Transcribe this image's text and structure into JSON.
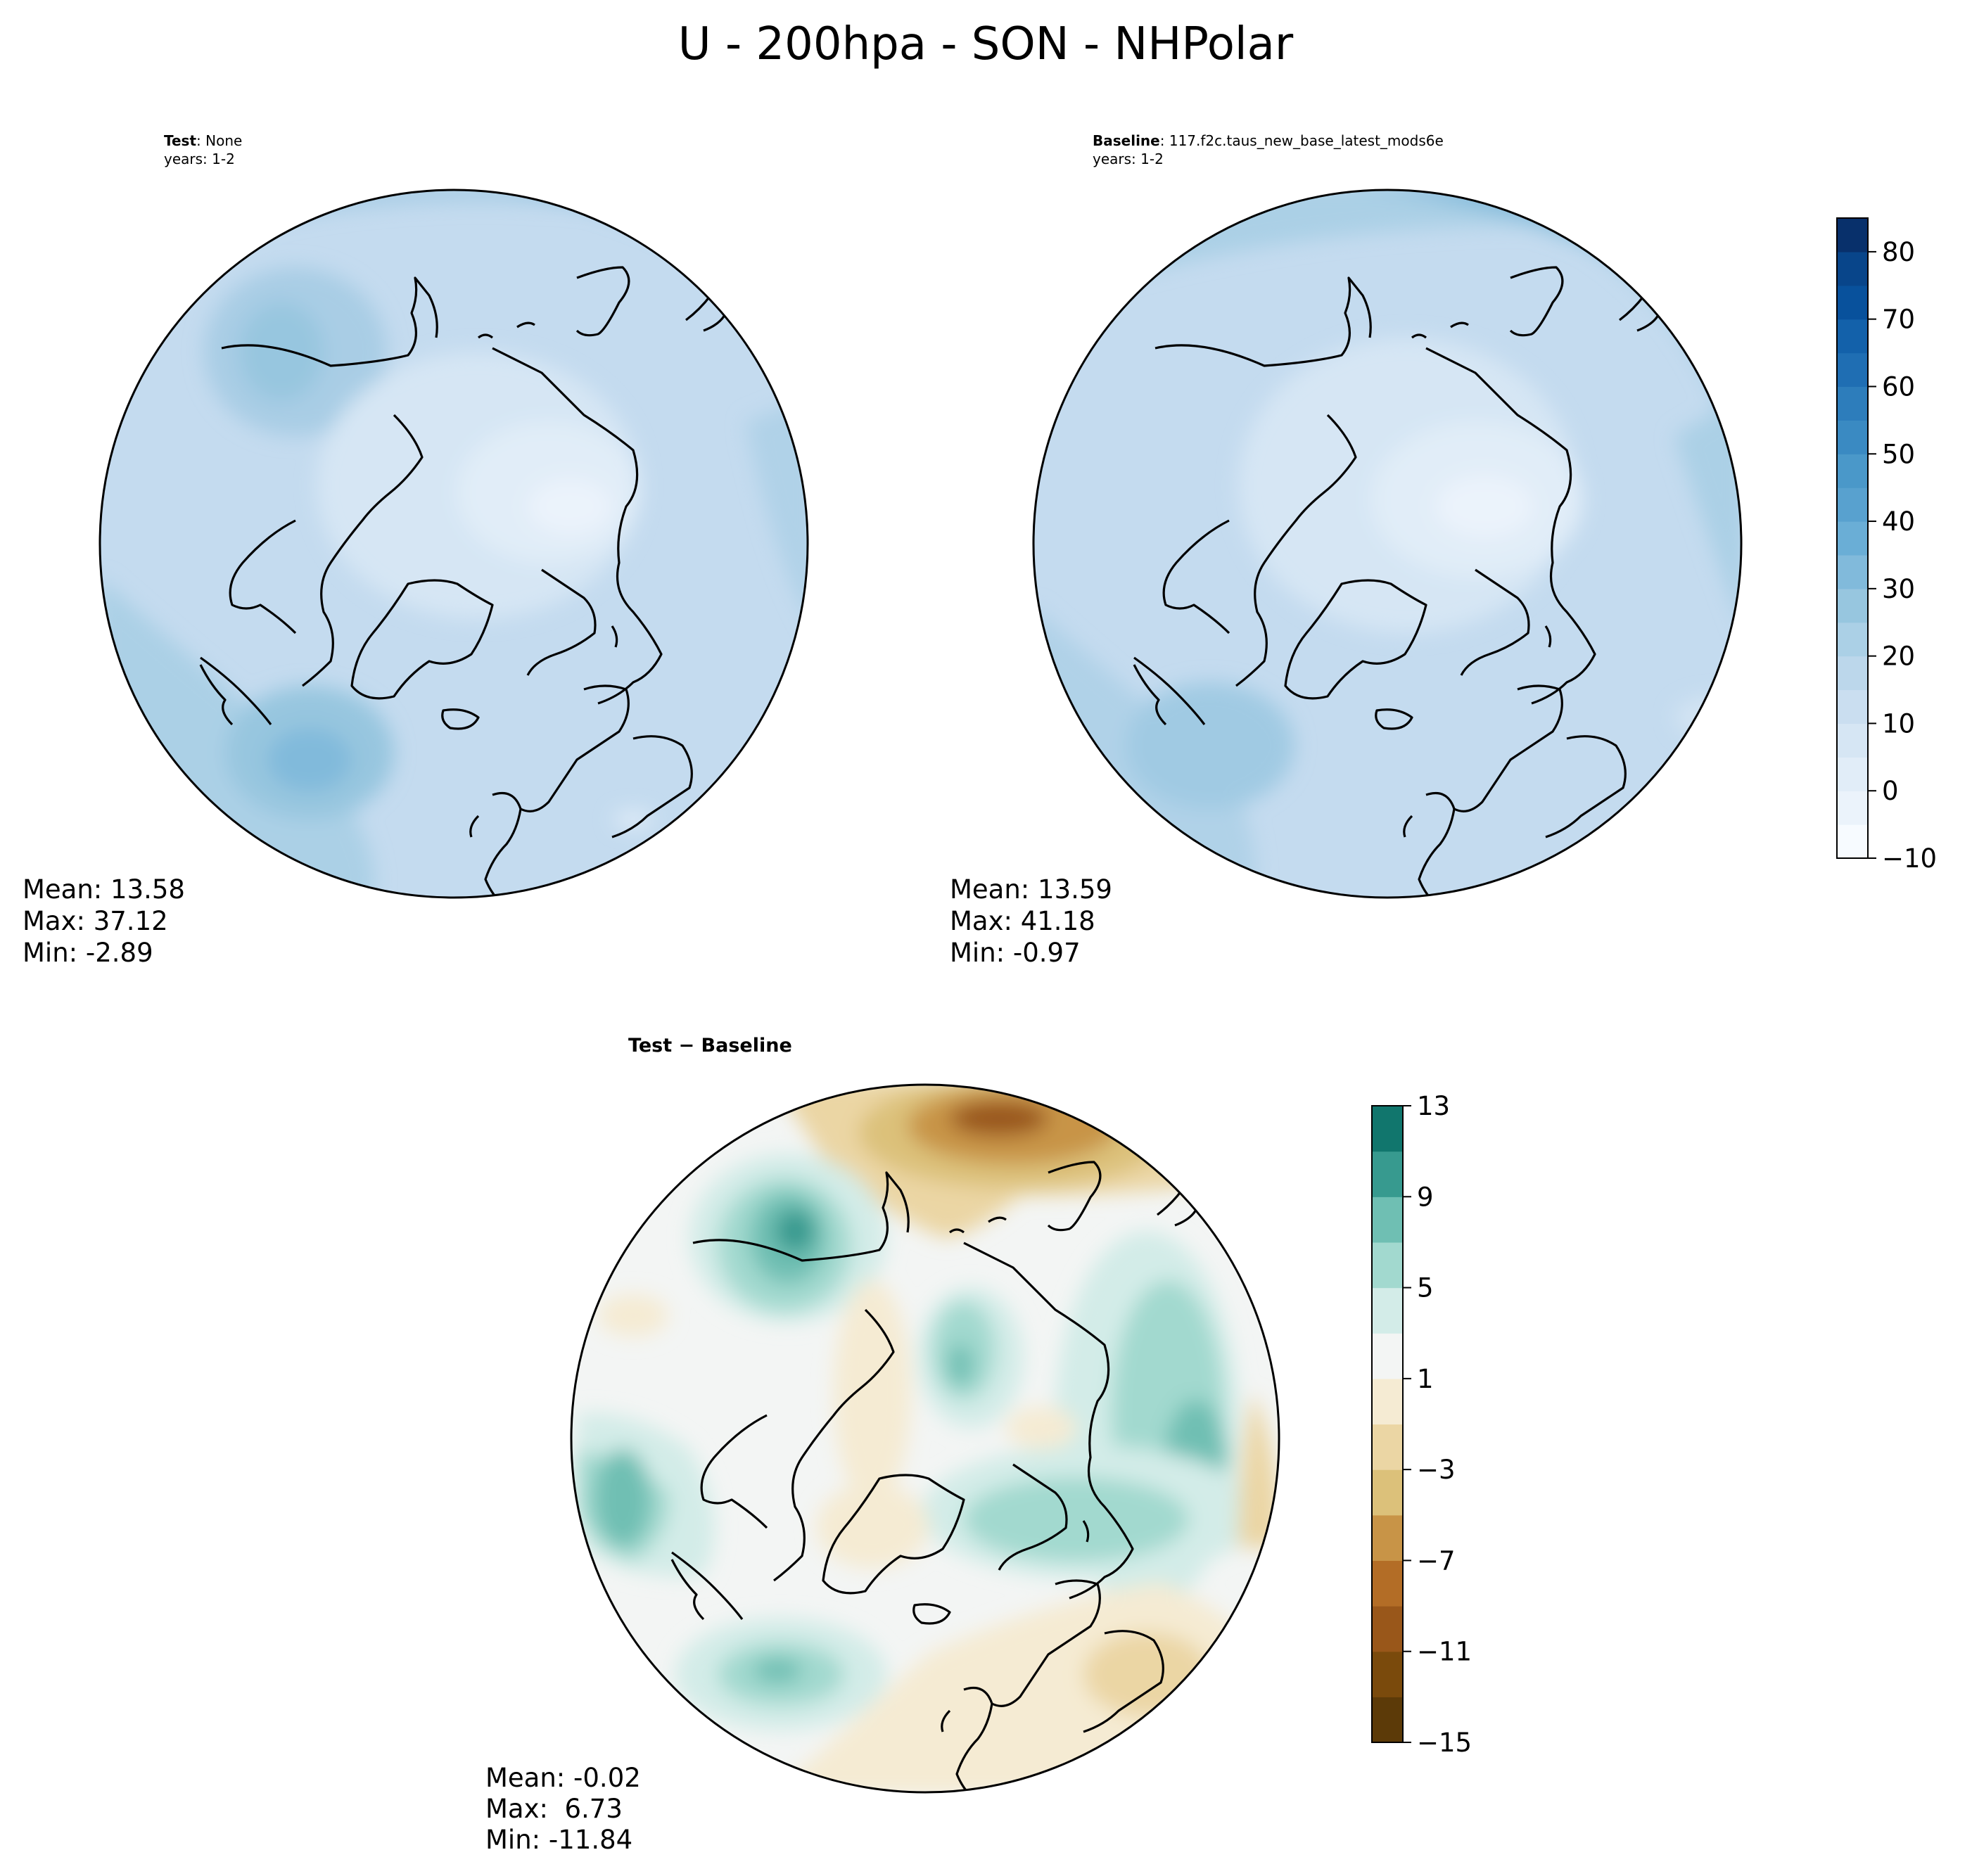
{
  "title": "U - 200hpa - SON - NHPolar",
  "chart_data": [
    {
      "type": "heatmap",
      "projection": "north-polar-stereographic",
      "title_label": "Test",
      "title_value": "None",
      "subtitle": "years: 1-2",
      "stats": {
        "mean_label": "Mean: 13.58",
        "max_label": "Max: 37.12",
        "min_label": "Min: -2.89",
        "mean": 13.58,
        "max": 37.12,
        "min": -2.89
      }
    },
    {
      "type": "heatmap",
      "projection": "north-polar-stereographic",
      "title_label": "Baseline",
      "title_value": "117.f2c.taus_new_base_latest_mods6e",
      "subtitle": "years: 1-2",
      "stats": {
        "mean_label": "Mean: 13.59",
        "max_label": "Max: 41.18",
        "min_label": "Min: -0.97",
        "mean": 13.59,
        "max": 41.18,
        "min": -0.97
      }
    },
    {
      "type": "heatmap",
      "projection": "north-polar-stereographic",
      "title_label": "Test − Baseline",
      "subtitle": "",
      "stats": {
        "mean_label": "Mean: -0.02",
        "max_label": "Max:  6.73",
        "min_label": "Min: -11.84",
        "mean": -0.02,
        "max": 6.73,
        "min": -11.84
      }
    }
  ],
  "colorbars": {
    "fields": {
      "colormap": "Blues",
      "range": [
        -10,
        85
      ],
      "levels": [
        -10,
        -5,
        0,
        5,
        10,
        15,
        20,
        25,
        30,
        35,
        40,
        45,
        50,
        55,
        60,
        65,
        70,
        75,
        80,
        85
      ],
      "ticks": [
        -10,
        0,
        10,
        20,
        30,
        40,
        50,
        60,
        70,
        80
      ],
      "tick_labels": [
        "−10",
        "0",
        "10",
        "20",
        "30",
        "40",
        "50",
        "60",
        "70",
        "80"
      ],
      "colors": [
        "#f7fbff",
        "#ebf3fb",
        "#e1edf8",
        "#d6e6f4",
        "#cadef0",
        "#bcd7eb",
        "#abd0e6",
        "#97c6df",
        "#81badb",
        "#6aaed6",
        "#58a1cf",
        "#4a98c9",
        "#3a8ac2",
        "#2d7dbb",
        "#1f6eb3",
        "#1361aa",
        "#08519c",
        "#08458a",
        "#08306b"
      ]
    },
    "difference": {
      "colormap": "BrBG",
      "range": [
        -15,
        13
      ],
      "levels": [
        -15,
        -13,
        -11,
        -9,
        -7,
        -5,
        -3,
        -1,
        1,
        3,
        5,
        7,
        9,
        11,
        13
      ],
      "ticks": [
        -15,
        -11,
        -7,
        -3,
        1,
        5,
        9,
        13
      ],
      "tick_labels": [
        "−15",
        "−11",
        "−7",
        "−3",
        "1",
        "5",
        "9",
        "13"
      ],
      "colors": [
        "#5c3a08",
        "#7a4a0c",
        "#99571a",
        "#b36d26",
        "#c89447",
        "#dcc17a",
        "#ebd6a4",
        "#f5ebd3",
        "#f3f5f4",
        "#d3ece8",
        "#a2d9cf",
        "#6fbfb3",
        "#379a8f",
        "#11766d"
      ]
    }
  }
}
